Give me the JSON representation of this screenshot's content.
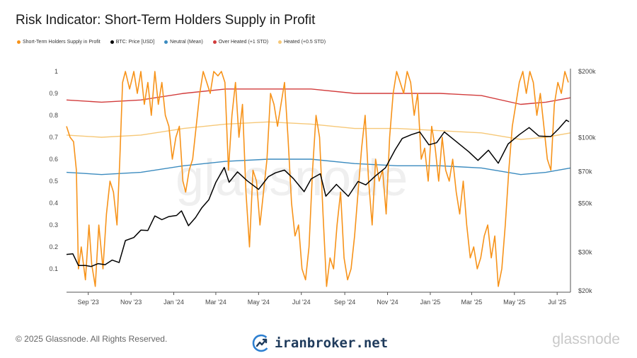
{
  "title": "Risk Indicator: Short-Term Holders Supply in Profit",
  "legend": [
    {
      "label": "Short-Term Holders Supply in Profit",
      "color": "#f7931a"
    },
    {
      "label": "BTC: Price [USD]",
      "color": "#000000"
    },
    {
      "label": "Neutral (Mean)",
      "color": "#3b8bbf"
    },
    {
      "label": "Over Heated (+1 STD)",
      "color": "#d23c3c"
    },
    {
      "label": "Heated (+0.5 STD)",
      "color": "#f6c878"
    }
  ],
  "watermark": "glassnode",
  "footer": {
    "copyright": "© 2025 Glassnode. All Rights Reserved.",
    "brand": "iranbroker.net",
    "logo": "glassnode"
  },
  "chart_data": {
    "type": "line",
    "x_range": [
      "2023-08-01",
      "2025-07-20"
    ],
    "x_ticks": [
      "Sep '23",
      "Nov '23",
      "Jan '24",
      "Mar '24",
      "May '24",
      "Jul '24",
      "Sep '24",
      "Nov '24",
      "Jan '25",
      "Mar '25",
      "May '25",
      "Jul '25"
    ],
    "y_left_ticks": [
      "1",
      "0.9",
      "0.8",
      "0.7",
      "0.6",
      "0.5",
      "0.4",
      "0.3",
      "0.2",
      "0.1"
    ],
    "y_left_range": [
      0,
      1
    ],
    "y_right_ticks": [
      "$200k",
      "$100k",
      "$70k",
      "$50k",
      "$30k",
      "$20k"
    ],
    "y_right_range": [
      20000,
      200000
    ],
    "y_right_scale": "log",
    "grid": false,
    "series": [
      {
        "name": "Short-Term Holders Supply in Profit",
        "axis": "left",
        "color": "#f7931a",
        "points": [
          [
            "2023-08-01",
            0.75
          ],
          [
            "2023-08-06",
            0.7
          ],
          [
            "2023-08-11",
            0.68
          ],
          [
            "2023-08-15",
            0.55
          ],
          [
            "2023-08-18",
            0.1
          ],
          [
            "2023-08-22",
            0.2
          ],
          [
            "2023-08-28",
            0.05
          ],
          [
            "2023-09-02",
            0.3
          ],
          [
            "2023-09-06",
            0.12
          ],
          [
            "2023-09-11",
            0.02
          ],
          [
            "2023-09-16",
            0.3
          ],
          [
            "2023-09-22",
            0.1
          ],
          [
            "2023-09-27",
            0.35
          ],
          [
            "2023-10-02",
            0.5
          ],
          [
            "2023-10-07",
            0.45
          ],
          [
            "2023-10-12",
            0.3
          ],
          [
            "2023-10-16",
            0.6
          ],
          [
            "2023-10-20",
            0.95
          ],
          [
            "2023-10-24",
            1.0
          ],
          [
            "2023-10-30",
            0.92
          ],
          [
            "2023-11-05",
            1.0
          ],
          [
            "2023-11-10",
            0.9
          ],
          [
            "2023-11-15",
            1.0
          ],
          [
            "2023-11-20",
            0.85
          ],
          [
            "2023-11-25",
            0.95
          ],
          [
            "2023-11-30",
            0.8
          ],
          [
            "2023-12-05",
            1.0
          ],
          [
            "2023-12-10",
            0.85
          ],
          [
            "2023-12-15",
            0.95
          ],
          [
            "2023-12-20",
            0.8
          ],
          [
            "2023-12-25",
            0.75
          ],
          [
            "2023-12-30",
            0.6
          ],
          [
            "2024-01-04",
            0.7
          ],
          [
            "2024-01-09",
            0.75
          ],
          [
            "2024-01-14",
            0.5
          ],
          [
            "2024-01-18",
            0.45
          ],
          [
            "2024-01-23",
            0.55
          ],
          [
            "2024-01-28",
            0.6
          ],
          [
            "2024-02-02",
            0.75
          ],
          [
            "2024-02-07",
            0.9
          ],
          [
            "2024-02-12",
            1.0
          ],
          [
            "2024-02-17",
            0.95
          ],
          [
            "2024-02-22",
            0.9
          ],
          [
            "2024-02-27",
            1.0
          ],
          [
            "2024-03-04",
            0.98
          ],
          [
            "2024-03-09",
            1.0
          ],
          [
            "2024-03-14",
            0.95
          ],
          [
            "2024-03-19",
            0.55
          ],
          [
            "2024-03-24",
            0.8
          ],
          [
            "2024-03-29",
            0.95
          ],
          [
            "2024-04-03",
            0.7
          ],
          [
            "2024-04-08",
            0.85
          ],
          [
            "2024-04-13",
            0.45
          ],
          [
            "2024-04-18",
            0.2
          ],
          [
            "2024-04-23",
            0.55
          ],
          [
            "2024-04-28",
            0.5
          ],
          [
            "2024-05-03",
            0.3
          ],
          [
            "2024-05-08",
            0.45
          ],
          [
            "2024-05-13",
            0.6
          ],
          [
            "2024-05-18",
            0.9
          ],
          [
            "2024-05-23",
            0.85
          ],
          [
            "2024-05-28",
            0.75
          ],
          [
            "2024-06-02",
            0.85
          ],
          [
            "2024-06-07",
            0.95
          ],
          [
            "2024-06-12",
            0.7
          ],
          [
            "2024-06-17",
            0.4
          ],
          [
            "2024-06-22",
            0.25
          ],
          [
            "2024-06-27",
            0.3
          ],
          [
            "2024-07-02",
            0.1
          ],
          [
            "2024-07-07",
            0.05
          ],
          [
            "2024-07-12",
            0.2
          ],
          [
            "2024-07-17",
            0.55
          ],
          [
            "2024-07-22",
            0.8
          ],
          [
            "2024-07-27",
            0.7
          ],
          [
            "2024-08-01",
            0.35
          ],
          [
            "2024-08-06",
            0.02
          ],
          [
            "2024-08-11",
            0.15
          ],
          [
            "2024-08-16",
            0.1
          ],
          [
            "2024-08-21",
            0.3
          ],
          [
            "2024-08-26",
            0.45
          ],
          [
            "2024-08-31",
            0.15
          ],
          [
            "2024-09-05",
            0.05
          ],
          [
            "2024-09-10",
            0.1
          ],
          [
            "2024-09-15",
            0.25
          ],
          [
            "2024-09-20",
            0.45
          ],
          [
            "2024-09-25",
            0.65
          ],
          [
            "2024-09-30",
            0.8
          ],
          [
            "2024-10-05",
            0.5
          ],
          [
            "2024-10-10",
            0.3
          ],
          [
            "2024-10-15",
            0.6
          ],
          [
            "2024-10-20",
            0.5
          ],
          [
            "2024-10-25",
            0.55
          ],
          [
            "2024-10-30",
            0.35
          ],
          [
            "2024-11-04",
            0.7
          ],
          [
            "2024-11-09",
            0.9
          ],
          [
            "2024-11-14",
            1.0
          ],
          [
            "2024-11-19",
            0.95
          ],
          [
            "2024-11-24",
            0.9
          ],
          [
            "2024-11-29",
            1.0
          ],
          [
            "2024-12-04",
            0.95
          ],
          [
            "2024-12-09",
            0.8
          ],
          [
            "2024-12-14",
            0.9
          ],
          [
            "2024-12-19",
            0.6
          ],
          [
            "2024-12-24",
            0.65
          ],
          [
            "2024-12-29",
            0.5
          ],
          [
            "2025-01-03",
            0.75
          ],
          [
            "2025-01-08",
            0.65
          ],
          [
            "2025-01-13",
            0.5
          ],
          [
            "2025-01-18",
            0.7
          ],
          [
            "2025-01-23",
            0.55
          ],
          [
            "2025-01-28",
            0.5
          ],
          [
            "2025-02-02",
            0.6
          ],
          [
            "2025-02-07",
            0.45
          ],
          [
            "2025-02-12",
            0.35
          ],
          [
            "2025-02-17",
            0.5
          ],
          [
            "2025-02-22",
            0.3
          ],
          [
            "2025-02-27",
            0.15
          ],
          [
            "2025-03-04",
            0.2
          ],
          [
            "2025-03-09",
            0.1
          ],
          [
            "2025-03-14",
            0.15
          ],
          [
            "2025-03-19",
            0.25
          ],
          [
            "2025-03-24",
            0.3
          ],
          [
            "2025-03-29",
            0.15
          ],
          [
            "2025-04-03",
            0.25
          ],
          [
            "2025-04-08",
            0.02
          ],
          [
            "2025-04-13",
            0.1
          ],
          [
            "2025-04-18",
            0.3
          ],
          [
            "2025-04-23",
            0.55
          ],
          [
            "2025-04-28",
            0.75
          ],
          [
            "2025-05-03",
            0.85
          ],
          [
            "2025-05-08",
            0.95
          ],
          [
            "2025-05-13",
            1.0
          ],
          [
            "2025-05-18",
            0.9
          ],
          [
            "2025-05-23",
            1.0
          ],
          [
            "2025-05-28",
            0.95
          ],
          [
            "2025-06-02",
            0.8
          ],
          [
            "2025-06-07",
            0.9
          ],
          [
            "2025-06-12",
            0.75
          ],
          [
            "2025-06-17",
            0.6
          ],
          [
            "2025-06-22",
            0.55
          ],
          [
            "2025-06-27",
            0.85
          ],
          [
            "2025-07-02",
            0.95
          ],
          [
            "2025-07-07",
            0.9
          ],
          [
            "2025-07-12",
            1.0
          ],
          [
            "2025-07-17",
            0.95
          ]
        ]
      },
      {
        "name": "BTC: Price [USD]",
        "axis": "right",
        "color": "#000000",
        "points": [
          [
            "2023-08-01",
            29300
          ],
          [
            "2023-08-10",
            29500
          ],
          [
            "2023-08-18",
            26100
          ],
          [
            "2023-08-28",
            26100
          ],
          [
            "2023-09-05",
            25800
          ],
          [
            "2023-09-15",
            26600
          ],
          [
            "2023-09-25",
            26300
          ],
          [
            "2023-10-05",
            27600
          ],
          [
            "2023-10-15",
            26900
          ],
          [
            "2023-10-24",
            33900
          ],
          [
            "2023-11-05",
            35000
          ],
          [
            "2023-11-15",
            37800
          ],
          [
            "2023-11-25",
            37700
          ],
          [
            "2023-12-05",
            43900
          ],
          [
            "2023-12-15",
            42200
          ],
          [
            "2023-12-25",
            43600
          ],
          [
            "2024-01-05",
            44100
          ],
          [
            "2024-01-12",
            46300
          ],
          [
            "2024-01-22",
            39600
          ],
          [
            "2024-02-01",
            43100
          ],
          [
            "2024-02-10",
            47800
          ],
          [
            "2024-02-20",
            52000
          ],
          [
            "2024-03-01",
            62400
          ],
          [
            "2024-03-13",
            73000
          ],
          [
            "2024-03-20",
            62500
          ],
          [
            "2024-04-01",
            69700
          ],
          [
            "2024-04-15",
            63400
          ],
          [
            "2024-05-01",
            58000
          ],
          [
            "2024-05-15",
            66300
          ],
          [
            "2024-05-25",
            69000
          ],
          [
            "2024-06-07",
            71000
          ],
          [
            "2024-06-20",
            64800
          ],
          [
            "2024-07-05",
            56600
          ],
          [
            "2024-07-15",
            64700
          ],
          [
            "2024-07-28",
            68300
          ],
          [
            "2024-08-05",
            54000
          ],
          [
            "2024-08-20",
            61100
          ],
          [
            "2024-09-06",
            53900
          ],
          [
            "2024-09-20",
            63000
          ],
          [
            "2024-10-01",
            60800
          ],
          [
            "2024-10-15",
            66900
          ],
          [
            "2024-10-29",
            72700
          ],
          [
            "2024-11-12",
            88000
          ],
          [
            "2024-11-22",
            99000
          ],
          [
            "2024-12-05",
            103000
          ],
          [
            "2024-12-17",
            106000
          ],
          [
            "2024-12-30",
            92600
          ],
          [
            "2025-01-10",
            94700
          ],
          [
            "2025-01-21",
            106000
          ],
          [
            "2025-02-05",
            97000
          ],
          [
            "2025-02-25",
            86000
          ],
          [
            "2025-03-10",
            78600
          ],
          [
            "2025-03-25",
            87500
          ],
          [
            "2025-04-08",
            76300
          ],
          [
            "2025-04-22",
            93400
          ],
          [
            "2025-05-08",
            103000
          ],
          [
            "2025-05-22",
            111000
          ],
          [
            "2025-06-05",
            101500
          ],
          [
            "2025-06-22",
            101000
          ],
          [
            "2025-07-03",
            109500
          ],
          [
            "2025-07-14",
            120000
          ],
          [
            "2025-07-18",
            118000
          ]
        ]
      },
      {
        "name": "Neutral (Mean)",
        "axis": "left",
        "color": "#3b8bbf",
        "points": [
          [
            "2023-08-01",
            0.54
          ],
          [
            "2023-09-20",
            0.53
          ],
          [
            "2023-11-15",
            0.54
          ],
          [
            "2024-01-15",
            0.57
          ],
          [
            "2024-03-15",
            0.59
          ],
          [
            "2024-05-15",
            0.6
          ],
          [
            "2024-07-15",
            0.6
          ],
          [
            "2024-09-15",
            0.58
          ],
          [
            "2024-11-15",
            0.57
          ],
          [
            "2025-01-15",
            0.57
          ],
          [
            "2025-03-15",
            0.56
          ],
          [
            "2025-05-10",
            0.53
          ],
          [
            "2025-06-15",
            0.54
          ],
          [
            "2025-07-20",
            0.56
          ]
        ]
      },
      {
        "name": "Over Heated (+1 STD)",
        "axis": "left",
        "color": "#d23c3c",
        "points": [
          [
            "2023-08-01",
            0.87
          ],
          [
            "2023-09-20",
            0.86
          ],
          [
            "2023-11-15",
            0.87
          ],
          [
            "2024-01-15",
            0.9
          ],
          [
            "2024-03-15",
            0.92
          ],
          [
            "2024-05-15",
            0.92
          ],
          [
            "2024-07-15",
            0.92
          ],
          [
            "2024-09-15",
            0.9
          ],
          [
            "2024-11-15",
            0.9
          ],
          [
            "2025-01-15",
            0.9
          ],
          [
            "2025-03-15",
            0.89
          ],
          [
            "2025-05-10",
            0.85
          ],
          [
            "2025-06-15",
            0.86
          ],
          [
            "2025-07-20",
            0.88
          ]
        ]
      },
      {
        "name": "Heated (+0.5 STD)",
        "axis": "left",
        "color": "#f6c878",
        "points": [
          [
            "2023-08-01",
            0.71
          ],
          [
            "2023-09-20",
            0.7
          ],
          [
            "2023-11-15",
            0.71
          ],
          [
            "2024-01-15",
            0.74
          ],
          [
            "2024-03-15",
            0.76
          ],
          [
            "2024-05-15",
            0.77
          ],
          [
            "2024-07-15",
            0.76
          ],
          [
            "2024-09-15",
            0.74
          ],
          [
            "2024-11-15",
            0.74
          ],
          [
            "2025-01-15",
            0.73
          ],
          [
            "2025-03-15",
            0.72
          ],
          [
            "2025-05-10",
            0.69
          ],
          [
            "2025-06-15",
            0.7
          ],
          [
            "2025-07-20",
            0.72
          ]
        ]
      }
    ]
  }
}
